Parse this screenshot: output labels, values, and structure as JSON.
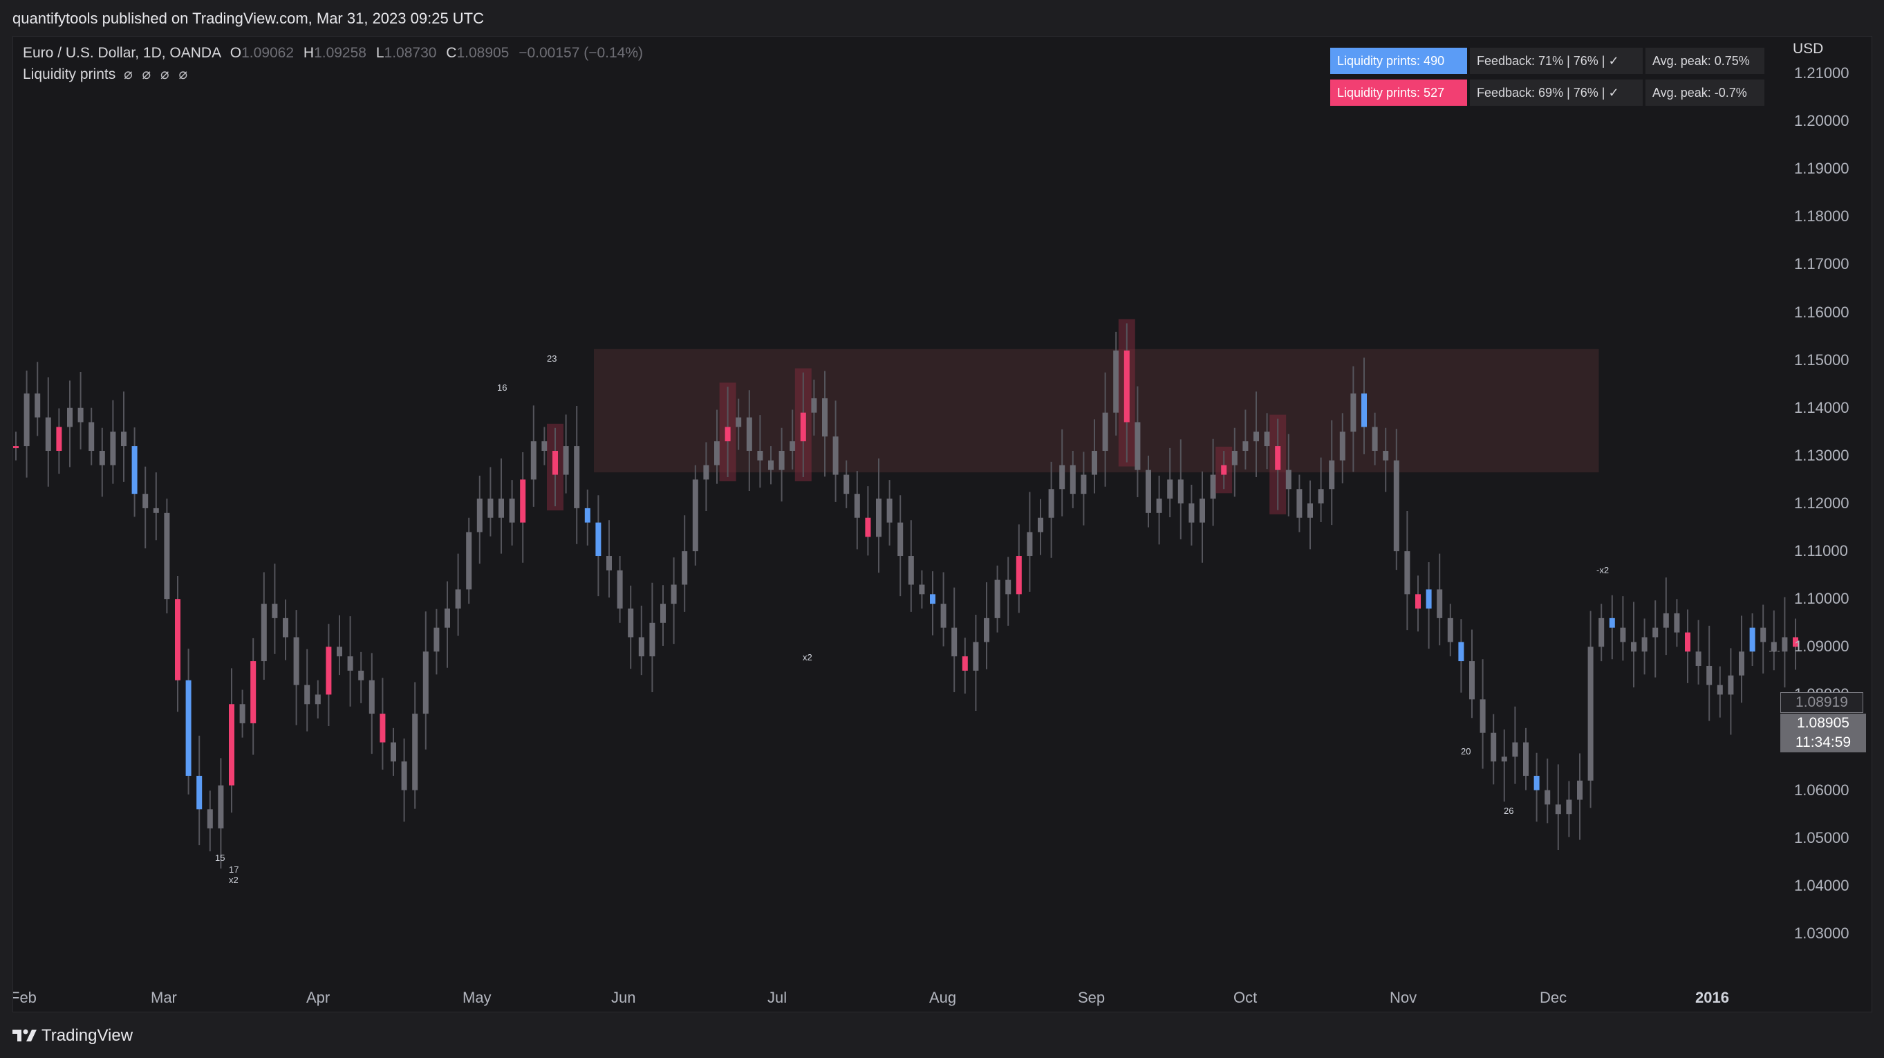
{
  "header": {
    "published_text": "quantifytools published on TradingView.com, Mar 31, 2023 09:25 UTC"
  },
  "legend": {
    "symbol": "Euro / U.S. Dollar, 1D, OANDA",
    "o_label": "O",
    "o_value": "1.09062",
    "h_label": "H",
    "h_value": "1.09258",
    "l_label": "L",
    "l_value": "1.08730",
    "c_label": "C",
    "c_value": "1.08905",
    "change": "−0.00157 (−0.14%)",
    "indicator_name": "Liquidity prints",
    "indicator_values": "⌀ ⌀ ⌀ ⌀"
  },
  "stats_table": {
    "rows": [
      {
        "label": "Liquidity prints: 490",
        "feedback": "Feedback: 71% | 76% | ✓",
        "avg_peak": "Avg. peak: 0.75%",
        "color": "#5b9cf6"
      },
      {
        "label": "Liquidity prints: 527",
        "feedback": "Feedback: 69% | 76% | ✓",
        "avg_peak": "Avg. peak: -0.7%",
        "color": "#f23f72"
      }
    ]
  },
  "axis": {
    "currency": "USD",
    "price_labels": [
      "1.21000",
      "1.20000",
      "1.19000",
      "1.18000",
      "1.17000",
      "1.16000",
      "1.15000",
      "1.14000",
      "1.13000",
      "1.12000",
      "1.11000",
      "1.10000",
      "1.09000",
      "1.08000",
      "1.07000",
      "1.06000",
      "1.05000",
      "1.04000",
      "1.03000"
    ],
    "time_labels": [
      "Feb",
      "Mar",
      "Apr",
      "May",
      "Jun",
      "Jul",
      "Aug",
      "Sep",
      "Oct",
      "Nov",
      "Dec",
      "2016"
    ]
  },
  "price_markers": {
    "prev_close": "1.08919",
    "last_price": "1.08905",
    "countdown": "11:34:59"
  },
  "annotations": [
    "15",
    "17",
    "x2",
    "16",
    "23",
    "x2",
    "20",
    "26",
    "-x2"
  ],
  "footer": {
    "brand": "TradingView"
  },
  "colors": {
    "bull_print": "#5b9cf6",
    "bear_print": "#f23f72",
    "neutral_candle": "#6a6a72",
    "zone_fill": "#3a2629"
  },
  "chart_data": {
    "type": "candlestick",
    "instrument": "EUR/USD",
    "timeframe": "1D",
    "ylim": [
      1.025,
      1.215
    ],
    "zone": {
      "start_month": 3.8,
      "end_month": 10.3,
      "low": 1.1265,
      "high": 1.1523
    },
    "series": [
      1.132,
      1.143,
      1.138,
      1.131,
      1.136,
      1.14,
      1.137,
      1.131,
      1.128,
      1.135,
      1.132,
      1.122,
      1.119,
      1.118,
      1.1,
      1.083,
      1.063,
      1.056,
      1.052,
      1.061,
      1.078,
      1.074,
      1.087,
      1.099,
      1.096,
      1.092,
      1.082,
      1.078,
      1.08,
      1.09,
      1.088,
      1.085,
      1.083,
      1.076,
      1.07,
      1.066,
      1.06,
      1.076,
      1.089,
      1.094,
      1.098,
      1.102,
      1.114,
      1.121,
      1.117,
      1.121,
      1.116,
      1.125,
      1.133,
      1.131,
      1.126,
      1.132,
      1.119,
      1.116,
      1.109,
      1.106,
      1.098,
      1.092,
      1.088,
      1.095,
      1.099,
      1.103,
      1.11,
      1.125,
      1.128,
      1.133,
      1.136,
      1.138,
      1.131,
      1.129,
      1.127,
      1.131,
      1.133,
      1.139,
      1.142,
      1.134,
      1.126,
      1.122,
      1.117,
      1.113,
      1.121,
      1.116,
      1.109,
      1.103,
      1.101,
      1.099,
      1.094,
      1.088,
      1.085,
      1.091,
      1.096,
      1.104,
      1.101,
      1.109,
      1.114,
      1.117,
      1.123,
      1.128,
      1.122,
      1.126,
      1.131,
      1.139,
      1.152,
      1.137,
      1.127,
      1.118,
      1.121,
      1.125,
      1.12,
      1.116,
      1.121,
      1.126,
      1.128,
      1.131,
      1.133,
      1.135,
      1.132,
      1.127,
      1.123,
      1.117,
      1.12,
      1.123,
      1.129,
      1.135,
      1.143,
      1.136,
      1.131,
      1.129,
      1.11,
      1.101,
      1.098,
      1.102,
      1.096,
      1.091,
      1.087,
      1.079,
      1.072,
      1.066,
      1.067,
      1.07,
      1.063,
      1.06,
      1.057,
      1.055,
      1.058,
      1.062,
      1.09,
      1.096,
      1.094,
      1.091,
      1.089,
      1.092,
      1.094,
      1.097,
      1.093,
      1.089,
      1.086,
      1.082,
      1.08,
      1.084,
      1.089,
      1.094,
      1.091,
      1.089,
      1.092,
      1.09
    ]
  }
}
